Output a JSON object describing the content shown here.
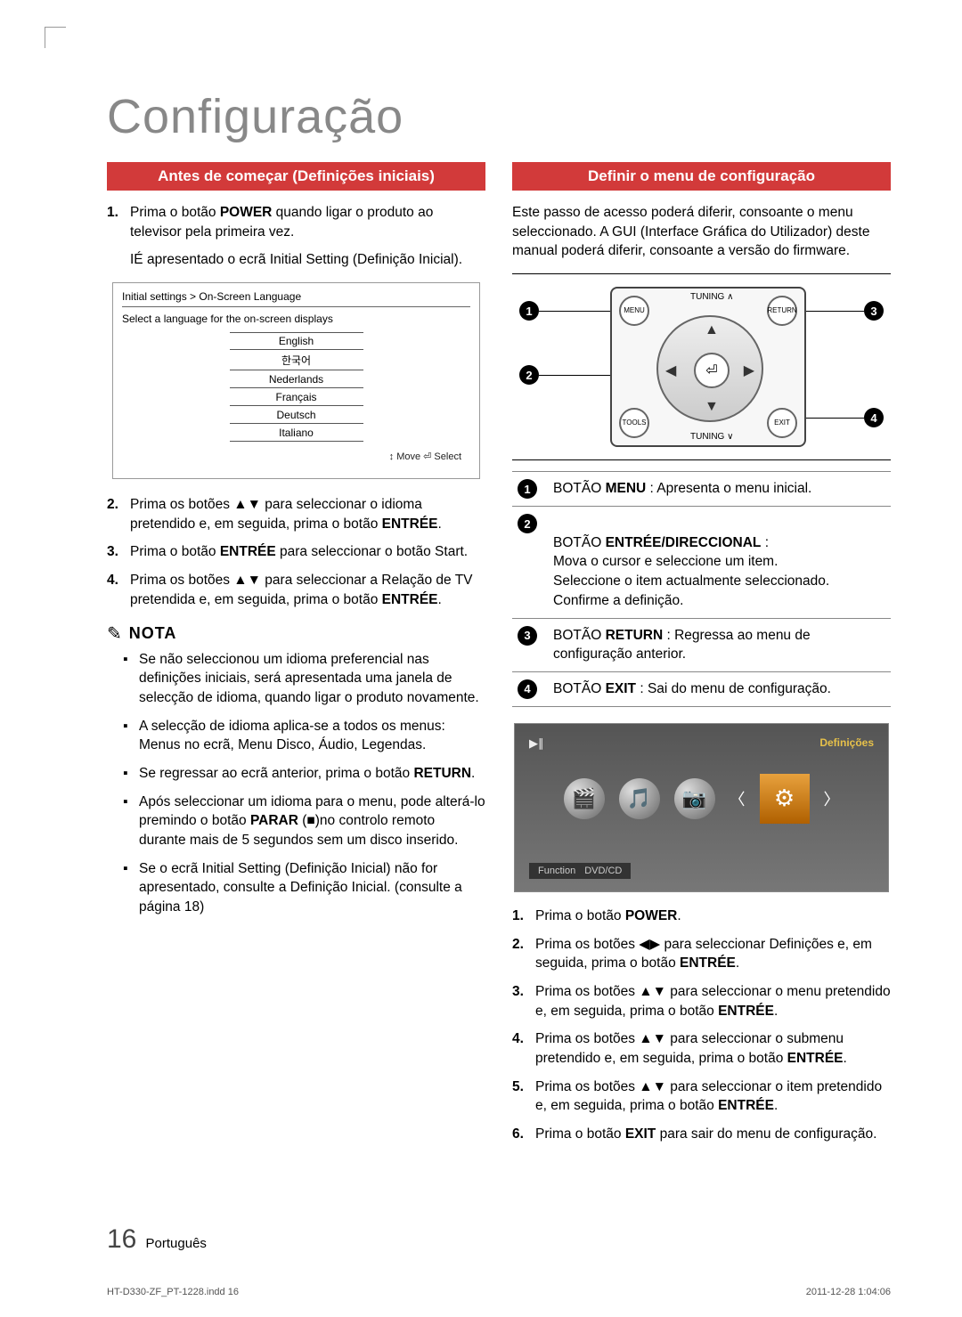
{
  "page": {
    "title": "Configuração",
    "number": "16",
    "lang_label": "Português",
    "imprint_file": "HT-D330-ZF_PT-1228.indd   16",
    "imprint_date": "2011-12-28   1:04:06"
  },
  "left": {
    "section_title": "Antes de começar (Definições iniciais)",
    "step1_a": "Prima o botão ",
    "step1_b": "POWER",
    "step1_c": " quando ligar o produto ao televisor pela primeira vez.",
    "step1_d": "IÉ apresentado o ecrã Initial Setting (Definição Inicial).",
    "settings": {
      "breadcrumb": "Initial settings > On-Screen Language",
      "subtitle": "Select a language for the on-screen displays",
      "languages": [
        "English",
        "한국어",
        "Nederlands",
        "Français",
        "Deutsch",
        "Italiano"
      ],
      "move_select": "↕ Move    ⏎ Select"
    },
    "step2": "Prima os botões ▲▼ para seleccionar o idioma pretendido e, em seguida, prima o botão ",
    "step2_b": "ENTRÉE",
    "step2_c": ".",
    "step3": "Prima o botão ",
    "step3_b": "ENTRÉE",
    "step3_c": " para seleccionar o botão Start.",
    "step4": "Prima os botões ▲▼ para seleccionar a Relação de TV pretendida e, em seguida, prima o botão ",
    "step4_b": "ENTRÉE",
    "step4_c": ".",
    "nota_label": "NOTA",
    "notes": [
      "Se não seleccionou um idioma preferencial nas definições iniciais, será apresentada uma janela de selecção de idioma, quando ligar o produto novamente.",
      "A selecção de idioma aplica-se a todos os menus: Menus no ecrã, Menu Disco, Áudio, Legendas.",
      "Se regressar ao ecrã anterior, prima o botão RETURN.",
      "Após seleccionar um idioma para o menu, pode alterá-lo premindo o botão PARAR (■)no controlo remoto durante mais de 5 segundos sem um disco inserido.",
      "Se o ecrã Initial Setting (Definição Inicial) não for apresentado, consulte a Definição Inicial. (consulte a página 18)"
    ]
  },
  "right": {
    "section_title": "Definir o menu de configuração",
    "intro": "Este passo de acesso poderá diferir, consoante o menu seleccionado. A GUI (Interface Gráfica do Utilizador) deste manual poderá diferir, consoante a versão do firmware.",
    "remote": {
      "menu": "MENU",
      "return": "RETURN",
      "tools": "TOOLS",
      "exit": "EXIT",
      "tuning_up": "TUNING ∧",
      "tuning_dn": "TUNING ∨",
      "center": "⏎"
    },
    "buttons": [
      {
        "n": "1",
        "pre": "BOTÃO ",
        "bold": "MENU",
        "rest": " : Apresenta o menu inicial."
      },
      {
        "n": "2",
        "pre": "BOTÃO ",
        "bold": "ENTRÉE/DIRECCIONAL",
        "rest": " :\nMova o cursor e seleccione um item.\nSeleccione o item actualmente seleccionado.\nConfirme a definição."
      },
      {
        "n": "3",
        "pre": "BOTÃO ",
        "bold": "RETURN",
        "rest": " : Regressa ao menu de configuração anterior."
      },
      {
        "n": "4",
        "pre": "BOTÃO ",
        "bold": "EXIT",
        "rest": " : Sai do menu de configuração."
      }
    ],
    "tv": {
      "play_pause": "▶∥",
      "definicoes": "Definições",
      "function": "Function",
      "dvdcd": "DVD/CD"
    },
    "steps": [
      {
        "n": "1.",
        "t": "Prima o botão ",
        "b": "POWER",
        "r": "."
      },
      {
        "n": "2.",
        "t": "Prima os botões ◀▶ para seleccionar Definições e, em seguida, prima o botão ",
        "b": "ENTRÉE",
        "r": "."
      },
      {
        "n": "3.",
        "t": "Prima os botões ▲▼ para seleccionar o menu pretendido e, em seguida, prima o botão ",
        "b": "ENTRÉE",
        "r": "."
      },
      {
        "n": "4.",
        "t": "Prima os botões ▲▼ para seleccionar o submenu pretendido e, em seguida, prima o botão ",
        "b": "ENTRÉE",
        "r": "."
      },
      {
        "n": "5.",
        "t": "Prima os botões ▲▼ para seleccionar o item pretendido e, em seguida, prima o botão ",
        "b": "ENTRÉE",
        "r": "."
      },
      {
        "n": "6.",
        "t": "Prima o botão ",
        "b": "EXIT",
        "r": " para sair do menu de configuração."
      }
    ]
  }
}
